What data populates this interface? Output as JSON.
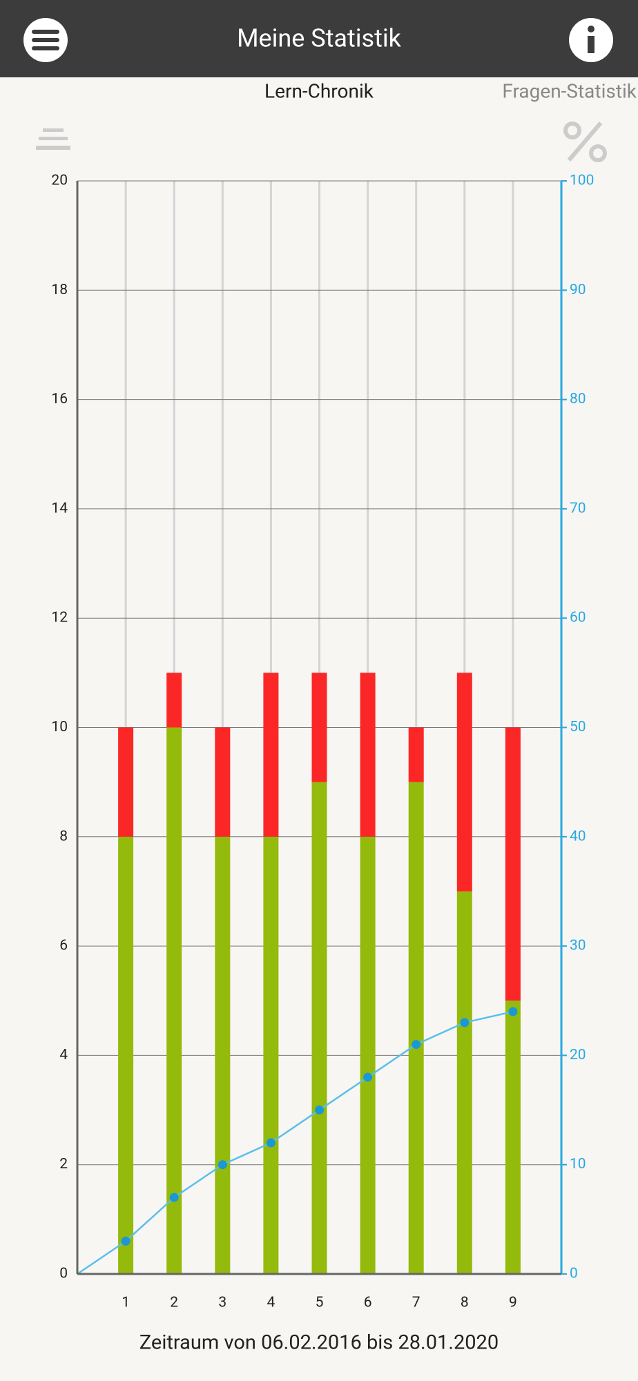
{
  "header": {
    "title": "Meine Statistik"
  },
  "tabs": [
    "Lern-Chronik",
    "Fragen-Statistik"
  ],
  "chart_data": {
    "type": "bar",
    "stacked": true,
    "x": [
      1,
      2,
      3,
      4,
      5,
      6,
      7,
      8,
      9
    ],
    "xlim": [
      0,
      10
    ],
    "xticks": [
      1,
      2,
      3,
      4,
      5,
      6,
      7,
      8,
      9
    ],
    "series": [
      {
        "color": "#94ba0c",
        "values": [
          8,
          10,
          8,
          8,
          9,
          8,
          9,
          7,
          5
        ]
      },
      {
        "color": "#fb2727",
        "values": [
          2,
          1,
          2,
          3,
          2,
          3,
          1,
          4,
          5
        ]
      },
      {
        "type": "line",
        "axis": "y2",
        "color": "#5bbfeb",
        "marker_color": "#1a98d5",
        "values": [
          3,
          7,
          10,
          12,
          15,
          18,
          21,
          23,
          24
        ]
      }
    ],
    "ylim": [
      0,
      20
    ],
    "yticks": [
      0,
      2,
      4,
      6,
      8,
      10,
      12,
      14,
      16,
      18,
      20
    ],
    "y2lim": [
      0,
      100
    ],
    "y2ticks": [
      0,
      10,
      20,
      30,
      40,
      50,
      60,
      70,
      80,
      90,
      100
    ],
    "y2color": "#29a8e0",
    "grid": true,
    "xlabel": "Zeitraum von 06.02.2016 bis 28.01.2020"
  }
}
